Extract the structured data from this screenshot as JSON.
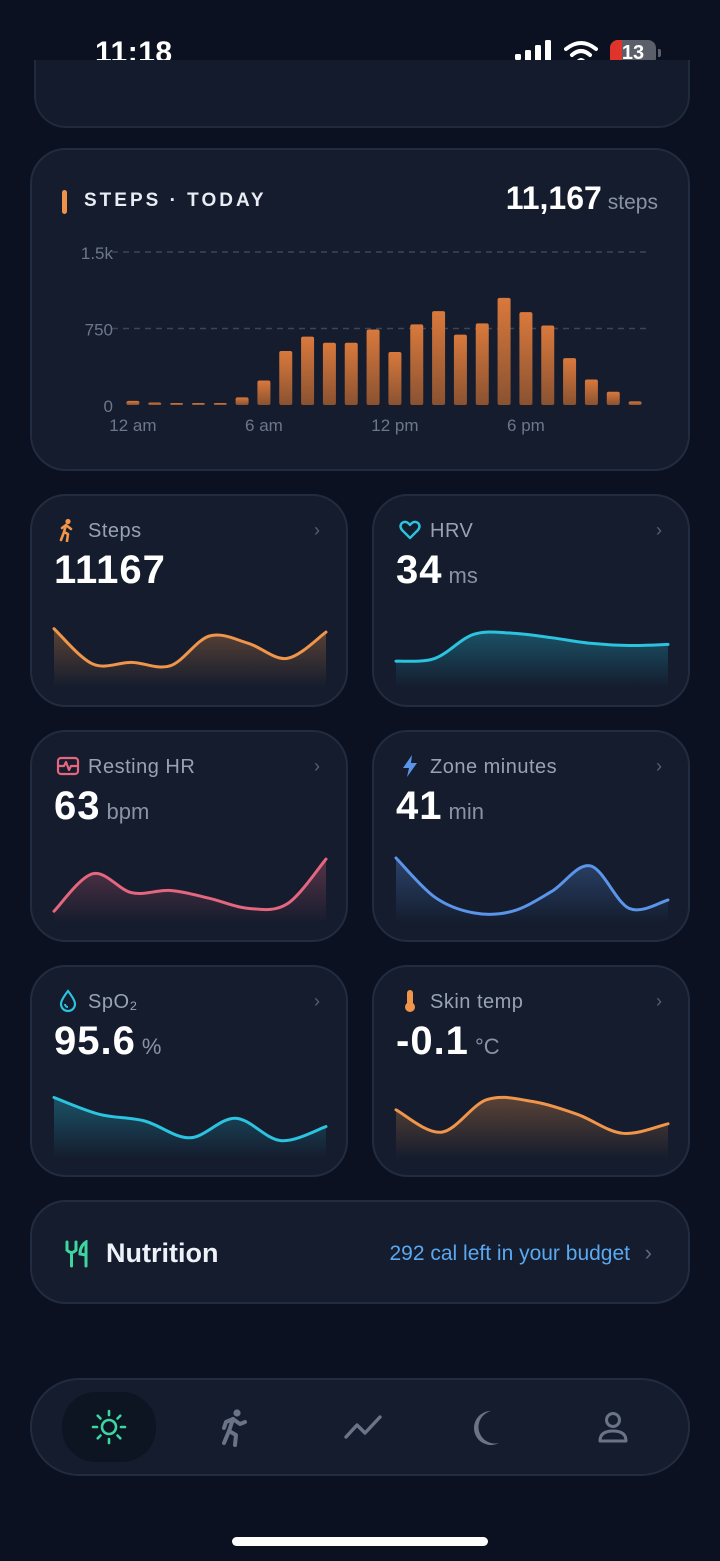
{
  "status_bar": {
    "time": "11:18",
    "battery": "13"
  },
  "steps_card": {
    "title": "STEPS · TODAY",
    "total": "11,167",
    "total_unit": "steps"
  },
  "chart_data": {
    "type": "bar",
    "title": "STEPS · TODAY",
    "categories": [
      "0",
      "1",
      "2",
      "3",
      "4",
      "5",
      "6",
      "7",
      "8",
      "9",
      "10",
      "11",
      "12",
      "13",
      "14",
      "15",
      "16",
      "17",
      "18",
      "19",
      "20",
      "21",
      "22",
      "23"
    ],
    "x_tick_labels": [
      "12 am",
      "6 am",
      "12 pm",
      "6 pm"
    ],
    "y_tick_labels": [
      "0",
      "750",
      "1.5k"
    ],
    "values": [
      40,
      25,
      20,
      15,
      15,
      75,
      240,
      530,
      670,
      610,
      610,
      740,
      520,
      790,
      920,
      690,
      800,
      1050,
      910,
      780,
      460,
      250,
      130,
      35
    ],
    "ylim": [
      0,
      1500
    ],
    "grid": true,
    "color": "#d1733a"
  },
  "metrics": [
    {
      "label": "Steps",
      "value": "11167",
      "unit": "",
      "icon": "walk-icon",
      "color": "#f0954a",
      "trend": [
        0.88,
        0.25,
        0.28,
        0.22,
        0.75,
        0.62,
        0.35,
        0.82
      ]
    },
    {
      "label": "HRV",
      "value": "34",
      "unit": "ms",
      "icon": "heart-icon",
      "color": "#2bc3df",
      "trend": [
        0.3,
        0.35,
        0.78,
        0.8,
        0.72,
        0.62,
        0.58,
        0.6
      ]
    },
    {
      "label": "Resting HR",
      "value": "63",
      "unit": "bpm",
      "icon": "heart-monitor-icon",
      "color": "#e5667f",
      "trend": [
        0.05,
        0.72,
        0.38,
        0.42,
        0.28,
        0.1,
        0.18,
        0.98
      ]
    },
    {
      "label": "Zone minutes",
      "value": "41",
      "unit": "min",
      "icon": "bolt-icon",
      "color": "#5b95ea",
      "trend": [
        1,
        0.3,
        0.02,
        0.05,
        0.4,
        0.86,
        0.1,
        0.25
      ]
    },
    {
      "label": "SpO₂",
      "value": "95.6",
      "unit": "%",
      "icon": "droplet-icon",
      "color": "#2bc3df",
      "trend": [
        0.92,
        0.62,
        0.5,
        0.2,
        0.55,
        0.15,
        0.4
      ]
    },
    {
      "label": "Skin temp",
      "value": "-0.1",
      "unit": "°C",
      "icon": "thermometer-icon",
      "color": "#f0954a",
      "trend": [
        0.7,
        0.3,
        0.88,
        0.85,
        0.62,
        0.28,
        0.45
      ]
    }
  ],
  "nutrition": {
    "title": "Nutrition",
    "budget": "292 cal left in your budget"
  },
  "tabs": [
    {
      "name": "today",
      "icon": "sun-icon",
      "active": true
    },
    {
      "name": "exercise",
      "icon": "run-icon",
      "active": false
    },
    {
      "name": "trends",
      "icon": "trend-icon",
      "active": false
    },
    {
      "name": "sleep",
      "icon": "moon-icon",
      "active": false
    },
    {
      "name": "profile",
      "icon": "person-icon",
      "active": false
    }
  ]
}
